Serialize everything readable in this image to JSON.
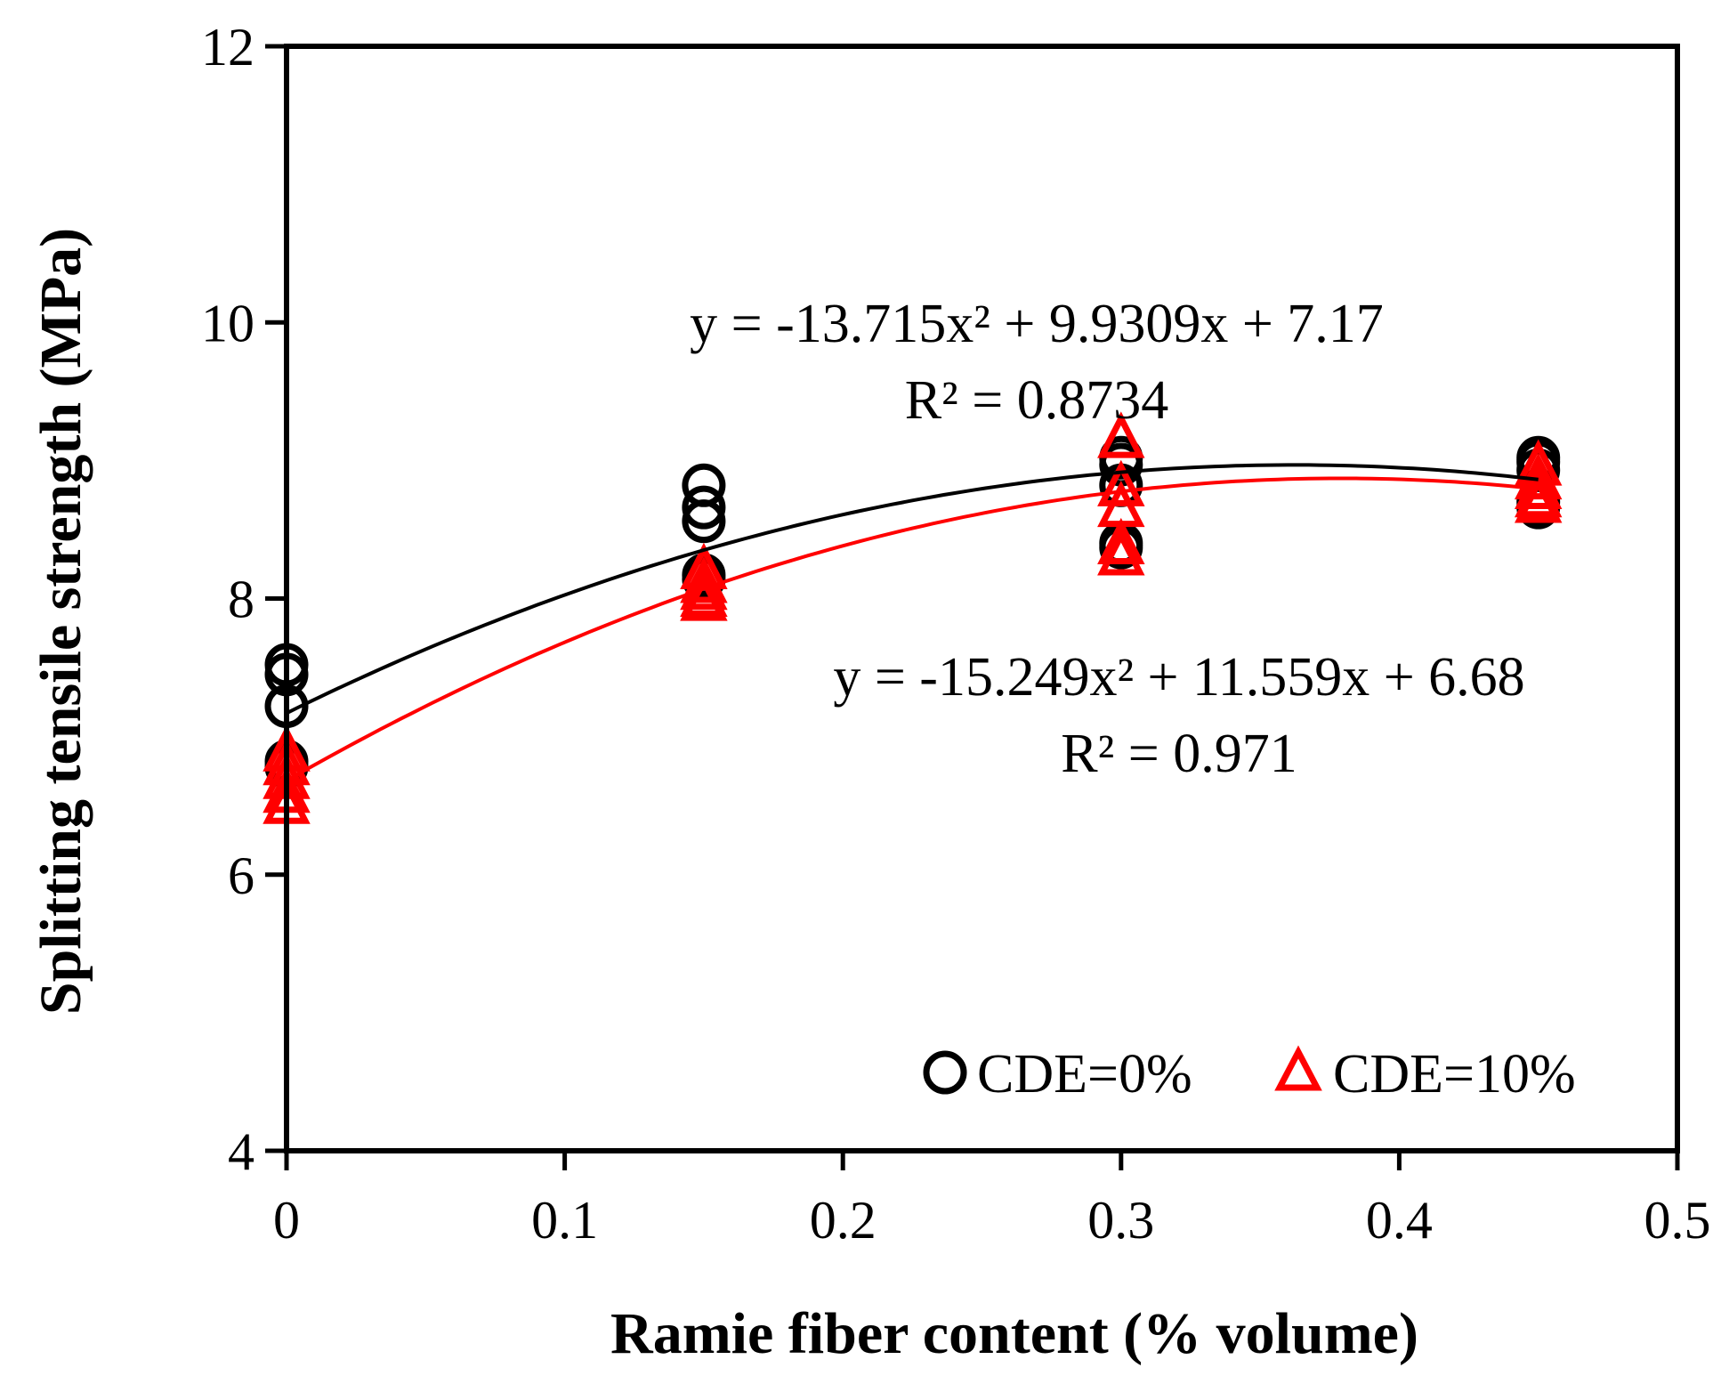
{
  "chart_data": {
    "type": "scatter",
    "title": "",
    "xlabel": "Ramie fiber content (% volume)",
    "ylabel": "Splitting tensile strength (MPa)",
    "xlim": [
      0,
      0.5
    ],
    "ylim": [
      4,
      12
    ],
    "x_ticks": [
      0,
      0.1,
      0.2,
      0.3,
      0.4,
      0.5
    ],
    "x_tick_labels": [
      "0",
      "0.1",
      "0.2",
      "0.3",
      "0.4",
      "0.5"
    ],
    "y_ticks": [
      4,
      6,
      8,
      10,
      12
    ],
    "y_tick_labels": [
      "4",
      "6",
      "8",
      "10",
      "12"
    ],
    "grid": false,
    "legend_position": "bottom-right",
    "series": [
      {
        "name": "CDE=0%",
        "marker": "circle",
        "color": "#000000",
        "points": [
          {
            "x": 0,
            "y": 7.52
          },
          {
            "x": 0,
            "y": 7.45
          },
          {
            "x": 0,
            "y": 7.22
          },
          {
            "x": 0,
            "y": 6.82
          },
          {
            "x": 0,
            "y": 6.78
          },
          {
            "x": 0.15,
            "y": 8.82
          },
          {
            "x": 0.15,
            "y": 8.66
          },
          {
            "x": 0.15,
            "y": 8.56
          },
          {
            "x": 0.15,
            "y": 8.17
          },
          {
            "x": 0.15,
            "y": 8.14
          },
          {
            "x": 0.3,
            "y": 9.02
          },
          {
            "x": 0.3,
            "y": 8.97
          },
          {
            "x": 0.3,
            "y": 8.82
          },
          {
            "x": 0.3,
            "y": 8.4
          },
          {
            "x": 0.3,
            "y": 8.37
          },
          {
            "x": 0.45,
            "y": 9.02
          },
          {
            "x": 0.45,
            "y": 8.99
          },
          {
            "x": 0.45,
            "y": 8.93
          },
          {
            "x": 0.45,
            "y": 8.7
          },
          {
            "x": 0.45,
            "y": 8.66
          }
        ],
        "trendline": {
          "a": -13.715,
          "b": 9.9309,
          "c": 7.17
        },
        "equation": "y = -13.715x² + 9.9309x + 7.17",
        "r_squared": "R² = 0.8734"
      },
      {
        "name": "CDE=10%",
        "marker": "triangle",
        "color": "#ff0000",
        "points": [
          {
            "x": 0,
            "y": 6.88
          },
          {
            "x": 0,
            "y": 6.78
          },
          {
            "x": 0,
            "y": 6.68
          },
          {
            "x": 0,
            "y": 6.58
          },
          {
            "x": 0,
            "y": 6.5
          },
          {
            "x": 0.15,
            "y": 8.2
          },
          {
            "x": 0.15,
            "y": 8.1
          },
          {
            "x": 0.15,
            "y": 8.05
          },
          {
            "x": 0.15,
            "y": 8.0
          },
          {
            "x": 0.15,
            "y": 7.97
          },
          {
            "x": 0.3,
            "y": 9.15
          },
          {
            "x": 0.3,
            "y": 8.8
          },
          {
            "x": 0.3,
            "y": 8.65
          },
          {
            "x": 0.3,
            "y": 8.38
          },
          {
            "x": 0.3,
            "y": 8.3
          },
          {
            "x": 0.45,
            "y": 8.95
          },
          {
            "x": 0.45,
            "y": 8.85
          },
          {
            "x": 0.45,
            "y": 8.78
          },
          {
            "x": 0.45,
            "y": 8.72
          },
          {
            "x": 0.45,
            "y": 8.68
          }
        ],
        "trendline": {
          "a": -15.249,
          "b": 11.559,
          "c": 6.68
        },
        "equation": "y = -15.249x² + 11.559x + 6.68",
        "r_squared": "R² = 0.971"
      }
    ]
  }
}
